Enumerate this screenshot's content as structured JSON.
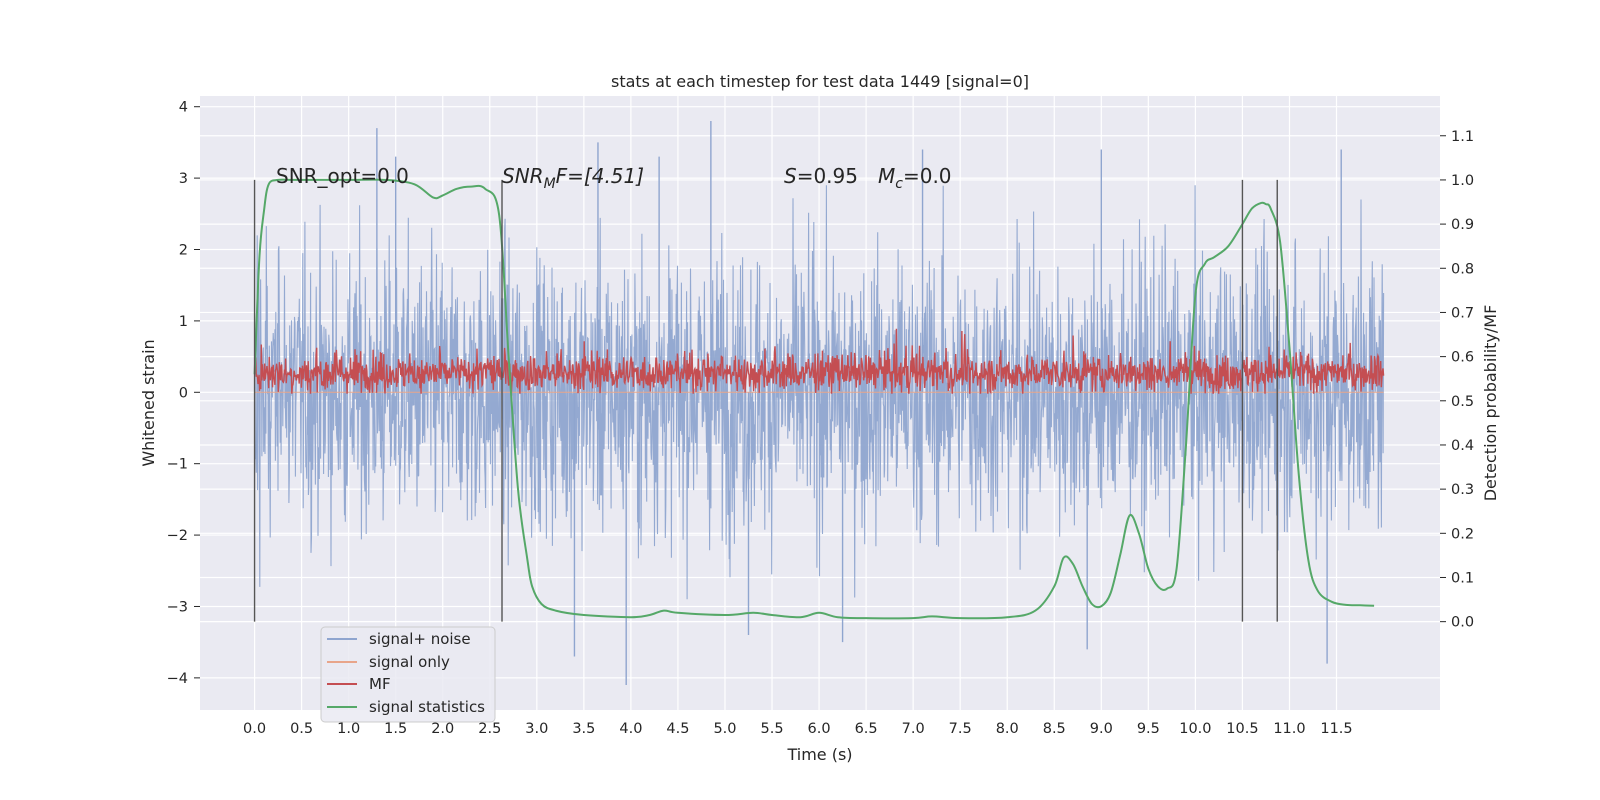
{
  "chart_data": {
    "type": "line",
    "title": "stats at each timestep for test data 1449 [signal=0]",
    "xlabel": "Time (s)",
    "ylabel_left": "Whitened strain",
    "ylabel_right": "Detection probability/MF",
    "xlim": [
      -0.58,
      12.6
    ],
    "ylim_left": [
      -4.45,
      4.15
    ],
    "ylim_right": [
      -0.2,
      1.19
    ],
    "x_ticks": [
      "0.0",
      "0.5",
      "1.0",
      "1.5",
      "2.0",
      "2.5",
      "3.0",
      "3.5",
      "4.0",
      "4.5",
      "5.0",
      "5.5",
      "6.0",
      "6.5",
      "7.0",
      "7.5",
      "8.0",
      "8.5",
      "9.0",
      "9.5",
      "10.0",
      "10.5",
      "11.0",
      "11.5"
    ],
    "y_left_ticks": [
      "−4",
      "−3",
      "−2",
      "−1",
      "0",
      "1",
      "2",
      "3",
      "4"
    ],
    "y_right_ticks": [
      "0.0",
      "0.1",
      "0.2",
      "0.3",
      "0.4",
      "0.5",
      "0.6",
      "0.7",
      "0.8",
      "0.9",
      "1.0",
      "1.1"
    ],
    "grid": true,
    "legend_position": "lower-left",
    "annotations": {
      "snr_opt": "SNR_opt=0.0",
      "snr_mf_base": "SNR",
      "snr_mf_sub": "M",
      "snr_mf_rest": "F=[4.51]",
      "s_stat_var": "S",
      "s_stat_val": "=0.95",
      "mc_var": "M",
      "mc_sub": "c",
      "mc_val": "=0.0"
    },
    "vertical_markers": [
      0.0,
      2.63,
      10.5,
      10.87
    ],
    "series": [
      {
        "name": "signal+ noise",
        "color": "#8fa5cf",
        "axis": "left",
        "style": "dense noise trace, envelope approx ±2.3 with spikes up to 3.7 and down to -4.1",
        "spike_times": [
          1.3,
          1.5,
          3.4,
          3.65,
          3.95,
          4.3,
          4.85,
          5.25,
          6.25,
          7.1,
          8.85,
          9.0,
          11.4,
          11.55
        ],
        "spike_values": [
          3.7,
          3.3,
          -3.7,
          3.5,
          -4.1,
          3.3,
          3.8,
          -3.4,
          -3.5,
          3.4,
          -3.6,
          3.4,
          -3.8,
          3.4
        ]
      },
      {
        "name": "signal only",
        "color": "#e8a58a",
        "axis": "left",
        "values_note": "flat at 0"
      },
      {
        "name": "MF",
        "color": "#c44e52",
        "axis": "left",
        "style": "noisy band around 0.25, range approx 0 to 0.9"
      },
      {
        "name": "signal statistics",
        "color": "#55a868",
        "axis": "right",
        "x": [
          0.0,
          0.05,
          0.1,
          0.15,
          0.25,
          0.4,
          0.6,
          1.0,
          1.4,
          1.7,
          1.9,
          2.0,
          2.15,
          2.3,
          2.45,
          2.6,
          2.7,
          2.8,
          2.9,
          2.95,
          3.05,
          3.2,
          3.5,
          4.0,
          4.2,
          4.35,
          4.5,
          5.0,
          5.3,
          5.5,
          5.8,
          6.0,
          6.2,
          6.5,
          7.0,
          7.2,
          7.5,
          8.0,
          8.3,
          8.5,
          8.6,
          8.7,
          8.8,
          8.9,
          9.0,
          9.1,
          9.2,
          9.3,
          9.4,
          9.5,
          9.6,
          9.7,
          9.8,
          9.9,
          10.0,
          10.1,
          10.2,
          10.35,
          10.5,
          10.6,
          10.7,
          10.75,
          10.8,
          10.9,
          11.0,
          11.1,
          11.2,
          11.3,
          11.45,
          11.6,
          11.75,
          11.9
        ],
        "values": [
          0.56,
          0.82,
          0.93,
          0.99,
          1.0,
          1.0,
          1.0,
          1.0,
          1.0,
          0.99,
          0.96,
          0.965,
          0.98,
          0.985,
          0.98,
          0.92,
          0.6,
          0.3,
          0.14,
          0.08,
          0.04,
          0.025,
          0.015,
          0.01,
          0.015,
          0.025,
          0.02,
          0.015,
          0.02,
          0.015,
          0.01,
          0.02,
          0.01,
          0.008,
          0.008,
          0.012,
          0.008,
          0.01,
          0.025,
          0.08,
          0.145,
          0.13,
          0.08,
          0.04,
          0.035,
          0.065,
          0.15,
          0.24,
          0.2,
          0.12,
          0.08,
          0.075,
          0.12,
          0.4,
          0.74,
          0.81,
          0.825,
          0.85,
          0.9,
          0.935,
          0.948,
          0.945,
          0.935,
          0.86,
          0.62,
          0.33,
          0.14,
          0.07,
          0.045,
          0.038,
          0.037,
          0.036
        ]
      }
    ]
  }
}
